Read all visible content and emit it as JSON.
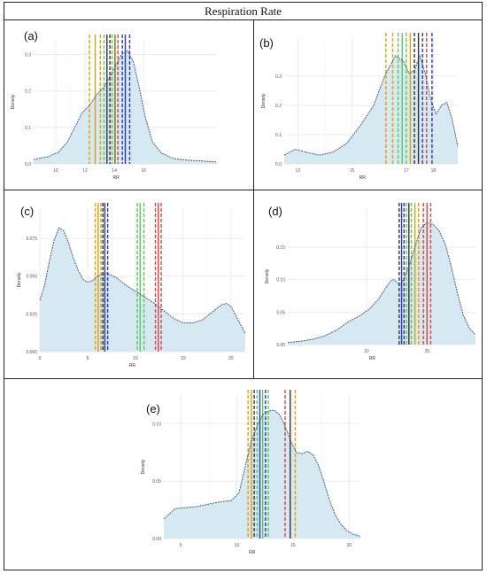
{
  "figure": {
    "title": "Respiration Rate"
  },
  "chart_data": [
    {
      "type": "area",
      "panel": "(a)",
      "xlabel": "RR",
      "ylabel": "Density",
      "xlim": [
        8.5,
        21
      ],
      "ylim": [
        0,
        0.34
      ],
      "xticks": [
        10,
        12,
        14,
        16
      ],
      "ytick_labels": [
        "0.0",
        "0.1",
        "0.2",
        "0.3"
      ],
      "yticks": [
        0,
        0.1,
        0.2,
        0.3
      ],
      "xtick_labels": [
        "10",
        "12",
        "14",
        "16"
      ],
      "curve": {
        "x": [
          8.5,
          9.5,
          10.2,
          10.8,
          11.3,
          11.8,
          12.3,
          12.8,
          13.3,
          13.7,
          14.1,
          14.5,
          14.9,
          15.3,
          15.7,
          16.1,
          16.6,
          17.2,
          18,
          19,
          20,
          21
        ],
        "y": [
          0.012,
          0.02,
          0.032,
          0.06,
          0.1,
          0.14,
          0.16,
          0.19,
          0.21,
          0.24,
          0.27,
          0.3,
          0.31,
          0.28,
          0.21,
          0.13,
          0.06,
          0.03,
          0.015,
          0.01,
          0.008,
          0.005
        ]
      },
      "vlines": [
        {
          "x": 12.3,
          "color": "#e6a000",
          "style": "dashed"
        },
        {
          "x": 12.7,
          "color": "#d4a017",
          "style": "solid"
        },
        {
          "x": 13.05,
          "color": "#e6a000",
          "style": "dashed"
        },
        {
          "x": 13.3,
          "color": "#5ac85a",
          "style": "dashed"
        },
        {
          "x": 13.5,
          "color": "#333333",
          "style": "solid"
        },
        {
          "x": 13.7,
          "color": "#333333",
          "style": "dashed"
        },
        {
          "x": 13.85,
          "color": "#5ac85a",
          "style": "dashed"
        },
        {
          "x": 14.05,
          "color": "#8b7000",
          "style": "solid"
        },
        {
          "x": 14.25,
          "color": "#d64545",
          "style": "dashed"
        },
        {
          "x": 14.55,
          "color": "#2b3aaa",
          "style": "dashed"
        },
        {
          "x": 14.75,
          "color": "#2b3aaa",
          "style": "solid"
        },
        {
          "x": 15.05,
          "color": "#2b3aaa",
          "style": "dashed"
        }
      ]
    },
    {
      "type": "area",
      "panel": "(b)",
      "xlabel": "RR",
      "ylabel": "Density",
      "xlim": [
        12.5,
        18.9
      ],
      "ylim": [
        0,
        0.43
      ],
      "xticks": [
        13,
        15,
        17,
        18
      ],
      "xtick_labels": [
        "13",
        "15",
        "17",
        "18"
      ],
      "yticks": [
        0,
        0.1,
        0.2,
        0.3
      ],
      "ytick_labels": [
        "0.0",
        "0.1",
        "0.2",
        "0.3"
      ],
      "curve": {
        "x": [
          12.5,
          12.9,
          13.3,
          13.8,
          14.3,
          14.8,
          15.3,
          15.8,
          16.2,
          16.6,
          16.9,
          17.1,
          17.3,
          17.5,
          17.7,
          17.9,
          18.1,
          18.3,
          18.5,
          18.7,
          18.9
        ],
        "y": [
          0.03,
          0.05,
          0.04,
          0.03,
          0.04,
          0.07,
          0.13,
          0.2,
          0.3,
          0.37,
          0.35,
          0.31,
          0.32,
          0.37,
          0.31,
          0.22,
          0.17,
          0.2,
          0.21,
          0.15,
          0.06
        ]
      },
      "vlines": [
        {
          "x": 16.25,
          "color": "#e6a000",
          "style": "dashed"
        },
        {
          "x": 16.5,
          "color": "#e6a000",
          "style": "dashed"
        },
        {
          "x": 16.7,
          "color": "#5ac85a",
          "style": "dashed"
        },
        {
          "x": 16.85,
          "color": "#5ac85a",
          "style": "solid"
        },
        {
          "x": 17.0,
          "color": "#5ac85a",
          "style": "dashed"
        },
        {
          "x": 17.15,
          "color": "#e6a000",
          "style": "solid"
        },
        {
          "x": 17.3,
          "color": "#333333",
          "style": "dashed"
        },
        {
          "x": 17.45,
          "color": "#333333",
          "style": "solid"
        },
        {
          "x": 17.6,
          "color": "#2b3aaa",
          "style": "dashed"
        },
        {
          "x": 17.75,
          "color": "#d64545",
          "style": "dashed"
        },
        {
          "x": 17.95,
          "color": "#2b3aaa",
          "style": "dashed"
        }
      ]
    },
    {
      "type": "area",
      "panel": "(c)",
      "xlabel": "RR",
      "ylabel": "Density",
      "xlim": [
        0,
        21.5
      ],
      "ylim": [
        0,
        0.095
      ],
      "xticks": [
        0,
        5,
        10,
        15,
        20
      ],
      "xtick_labels": [
        "0",
        "5",
        "10",
        "15",
        "20"
      ],
      "yticks": [
        0,
        0.025,
        0.05,
        0.075
      ],
      "ytick_labels": [
        "0.000",
        "0.025",
        "0.050",
        "0.075"
      ],
      "curve": {
        "x": [
          0,
          0.5,
          1,
          1.5,
          2,
          2.5,
          3,
          3.5,
          4,
          4.5,
          5,
          5.5,
          6,
          7,
          8,
          9,
          10,
          11,
          12,
          13,
          14,
          15,
          16,
          17,
          18,
          19,
          19.5,
          20,
          20.5,
          21,
          21.5
        ],
        "y": [
          0.034,
          0.044,
          0.06,
          0.074,
          0.082,
          0.08,
          0.072,
          0.062,
          0.054,
          0.048,
          0.046,
          0.047,
          0.05,
          0.052,
          0.049,
          0.044,
          0.04,
          0.036,
          0.032,
          0.027,
          0.022,
          0.019,
          0.019,
          0.021,
          0.026,
          0.031,
          0.032,
          0.03,
          0.024,
          0.018,
          0.012
        ]
      },
      "vlines": [
        {
          "x": 5.8,
          "color": "#e6a000",
          "style": "dashed"
        },
        {
          "x": 6.1,
          "color": "#d4a017",
          "style": "solid"
        },
        {
          "x": 6.4,
          "color": "#e6a000",
          "style": "dashed"
        },
        {
          "x": 6.6,
          "color": "#333333",
          "style": "dashed"
        },
        {
          "x": 6.8,
          "color": "#2b3aaa",
          "style": "solid"
        },
        {
          "x": 7.1,
          "color": "#2b3aaa",
          "style": "dashed"
        },
        {
          "x": 10.2,
          "color": "#5ac85a",
          "style": "dashed"
        },
        {
          "x": 10.5,
          "color": "#5ac85a",
          "style": "solid"
        },
        {
          "x": 10.9,
          "color": "#5ac85a",
          "style": "dashed"
        },
        {
          "x": 12.1,
          "color": "#d64545",
          "style": "dashed"
        },
        {
          "x": 12.4,
          "color": "#d64545",
          "style": "solid"
        },
        {
          "x": 12.7,
          "color": "#d64545",
          "style": "dashed"
        }
      ]
    },
    {
      "type": "area",
      "panel": "(d)",
      "xlabel": "RR",
      "ylabel": "Density",
      "xlim": [
        -3,
        28
      ],
      "ylim": [
        0,
        0.21
      ],
      "xticks": [
        10,
        20
      ],
      "xtick_labels": [
        "10",
        "20"
      ],
      "yticks": [
        0,
        0.05,
        0.1,
        0.15
      ],
      "ytick_labels": [
        "0.00",
        "0.05",
        "0.10",
        "0.15"
      ],
      "curve": {
        "x": [
          -3,
          -1,
          1,
          3,
          5,
          7,
          9,
          10.5,
          12,
          13,
          14,
          14.5,
          15,
          15.5,
          16,
          17,
          18,
          19,
          20,
          21,
          22,
          23,
          24,
          25,
          26,
          27,
          28
        ],
        "y": [
          0.003,
          0.005,
          0.008,
          0.013,
          0.022,
          0.035,
          0.045,
          0.055,
          0.07,
          0.085,
          0.098,
          0.1,
          0.096,
          0.092,
          0.098,
          0.12,
          0.15,
          0.18,
          0.188,
          0.185,
          0.175,
          0.155,
          0.12,
          0.08,
          0.045,
          0.025,
          0.015
        ]
      },
      "vlines": [
        {
          "x": 15.4,
          "color": "#333333",
          "style": "dashed"
        },
        {
          "x": 15.8,
          "color": "#2b3aaa",
          "style": "solid"
        },
        {
          "x": 16.2,
          "color": "#2b3aaa",
          "style": "dashed"
        },
        {
          "x": 16.6,
          "color": "#5ac85a",
          "style": "dashed"
        },
        {
          "x": 17.0,
          "color": "#333333",
          "style": "solid"
        },
        {
          "x": 17.4,
          "color": "#5ac85a",
          "style": "dashed"
        },
        {
          "x": 18.0,
          "color": "#d4a017",
          "style": "solid"
        },
        {
          "x": 18.6,
          "color": "#e6a000",
          "style": "dashed"
        },
        {
          "x": 19.4,
          "color": "#d64545",
          "style": "dashed"
        },
        {
          "x": 20.0,
          "color": "#d64545",
          "style": "solid"
        },
        {
          "x": 20.6,
          "color": "#d64545",
          "style": "dashed"
        }
      ]
    },
    {
      "type": "area",
      "panel": "(e)",
      "xlabel": "RR",
      "ylabel": "Density",
      "xlim": [
        3.5,
        21
      ],
      "ylim": [
        0,
        0.125
      ],
      "xticks": [
        5,
        10,
        15,
        20
      ],
      "xtick_labels": [
        "5",
        "10",
        "15",
        "20"
      ],
      "yticks": [
        0,
        0.05,
        0.1
      ],
      "ytick_labels": [
        "0.00",
        "0.05",
        "0.10"
      ],
      "curve": {
        "x": [
          3.5,
          4.5,
          5.5,
          6.5,
          7.5,
          8.5,
          9.5,
          10.2,
          10.8,
          11.3,
          11.8,
          12.3,
          12.8,
          13.3,
          13.8,
          14.3,
          14.8,
          15.3,
          15.8,
          16.3,
          16.8,
          17.3,
          17.8,
          18.3,
          18.8,
          19.3,
          19.8,
          20.3,
          21
        ],
        "y": [
          0.017,
          0.026,
          0.027,
          0.028,
          0.03,
          0.032,
          0.033,
          0.04,
          0.065,
          0.085,
          0.098,
          0.108,
          0.111,
          0.112,
          0.108,
          0.098,
          0.085,
          0.075,
          0.074,
          0.076,
          0.073,
          0.063,
          0.048,
          0.032,
          0.02,
          0.012,
          0.007,
          0.004,
          0.002
        ]
      },
      "vlines": [
        {
          "x": 11.0,
          "color": "#e6a000",
          "style": "dashed"
        },
        {
          "x": 11.3,
          "color": "#d4a017",
          "style": "solid"
        },
        {
          "x": 11.55,
          "color": "#333333",
          "style": "dashed"
        },
        {
          "x": 11.8,
          "color": "#5ac85a",
          "style": "dashed"
        },
        {
          "x": 12.05,
          "color": "#2b3aaa",
          "style": "solid"
        },
        {
          "x": 12.3,
          "color": "#5ac85a",
          "style": "solid"
        },
        {
          "x": 12.55,
          "color": "#2b3aaa",
          "style": "dashed"
        },
        {
          "x": 12.8,
          "color": "#5ac85a",
          "style": "dashed"
        },
        {
          "x": 14.3,
          "color": "#d64545",
          "style": "dashed"
        },
        {
          "x": 14.75,
          "color": "#333333",
          "style": "solid"
        },
        {
          "x": 15.2,
          "color": "#e6a000",
          "style": "dashed"
        }
      ]
    }
  ],
  "colors": {
    "fill": "#d6e8f2",
    "curve": "#2f4f6f",
    "grid": "#ebebeb",
    "axis_text": "#555555"
  }
}
